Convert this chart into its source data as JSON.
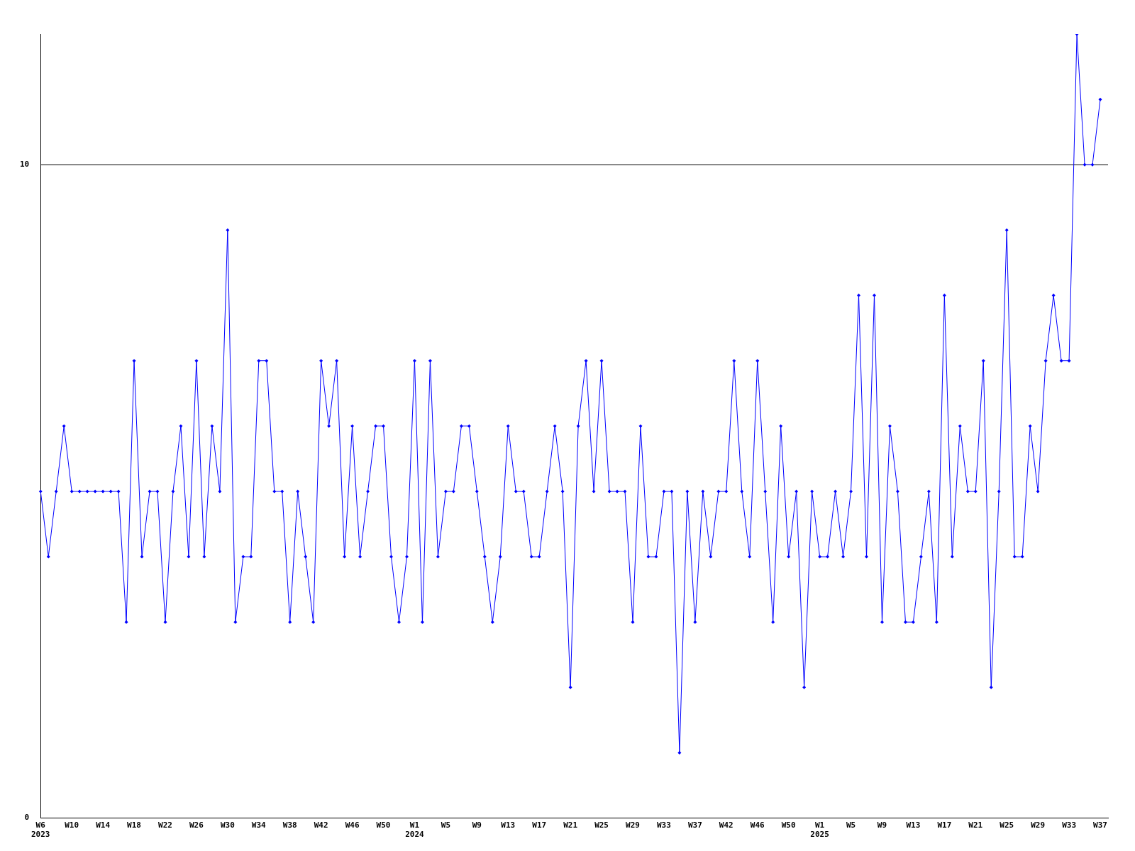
{
  "chart_data": {
    "type": "line",
    "categories": [
      "W6\n2023",
      null,
      null,
      null,
      "W10",
      null,
      null,
      null,
      "W14",
      null,
      null,
      null,
      "W18",
      null,
      null,
      null,
      "W22",
      null,
      null,
      null,
      "W26",
      null,
      null,
      null,
      "W30",
      null,
      null,
      null,
      "W34",
      null,
      null,
      null,
      "W38",
      null,
      null,
      null,
      "W42",
      null,
      null,
      null,
      "W46",
      null,
      null,
      null,
      "W50",
      null,
      null,
      null,
      "W1\n2024",
      null,
      null,
      null,
      "W5",
      null,
      null,
      null,
      "W9",
      null,
      null,
      null,
      "W13",
      null,
      null,
      null,
      "W17",
      null,
      null,
      null,
      "W21",
      null,
      null,
      null,
      "W25",
      null,
      null,
      null,
      "W29",
      null,
      null,
      null,
      "W33",
      null,
      null,
      null,
      "W37",
      null,
      null,
      null,
      "W42",
      null,
      null,
      null,
      "W46",
      null,
      null,
      null,
      "W50",
      null,
      null,
      null,
      "W1\n2025",
      null,
      null,
      null,
      "W5",
      null,
      null,
      null,
      "W9",
      null,
      null,
      null,
      "W13",
      null,
      null,
      null,
      "W17",
      null,
      null,
      null,
      "W21",
      null,
      null,
      null,
      "W25",
      null,
      null,
      null,
      "W29",
      null,
      null,
      null,
      "W33",
      null,
      null,
      null,
      "W37",
      null
    ],
    "series": [
      {
        "color": "#0000ff",
        "values": [
          5,
          4,
          5,
          6,
          5,
          5,
          5,
          5,
          5,
          5,
          5,
          3,
          7,
          4,
          5,
          5,
          3,
          5,
          6,
          4,
          7,
          4,
          6,
          5,
          9,
          3,
          4,
          4,
          7,
          7,
          5,
          5,
          3,
          5,
          4,
          3,
          7,
          6,
          7,
          4,
          6,
          4,
          5,
          6,
          6,
          4,
          3,
          4,
          7,
          3,
          7,
          4,
          5,
          5,
          6,
          6,
          5,
          4,
          3,
          4,
          6,
          5,
          5,
          4,
          4,
          5,
          6,
          5,
          2,
          6,
          7,
          5,
          7,
          5,
          5,
          5,
          3,
          6,
          4,
          4,
          5,
          5,
          1,
          5,
          3,
          5,
          4,
          5,
          5,
          7,
          5,
          4,
          7,
          5,
          3,
          6,
          4,
          5,
          2,
          5,
          4,
          4,
          5,
          4,
          5,
          8,
          4,
          8,
          3,
          6,
          5,
          3,
          3,
          4,
          5,
          3,
          8,
          4,
          6,
          5,
          5,
          7,
          2,
          5,
          9,
          4,
          4,
          6,
          5,
          7,
          8,
          7,
          7,
          12,
          10,
          10,
          11,
          null
        ]
      }
    ],
    "ylim": [
      0,
      12
    ],
    "yticks": [
      0,
      10
    ],
    "grid": "y",
    "legend": false,
    "marker": "diamond",
    "line_style": "solid"
  }
}
